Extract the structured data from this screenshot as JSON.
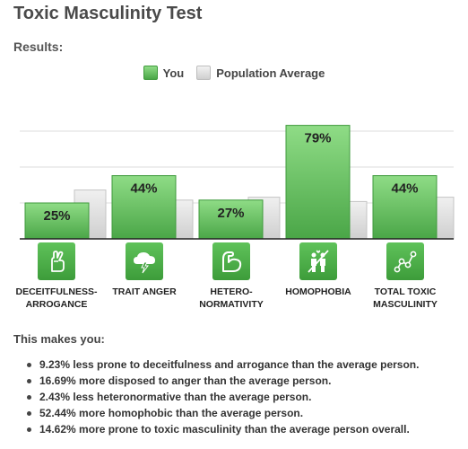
{
  "page": {
    "title": "Toxic Masculinity Test",
    "subtitle": "Results:",
    "makes_you_label": "This makes you:"
  },
  "legend": {
    "you": "You",
    "average": "Population Average"
  },
  "colors": {
    "you_bar_top": "#8fdc86",
    "you_bar_bottom": "#4aa647",
    "avg_bar_top": "#f0f0f0",
    "avg_bar_bottom": "#cfcfcf",
    "icon_green": "#4aa647"
  },
  "chart_data": {
    "type": "bar",
    "title": "",
    "ylim": [
      0,
      100
    ],
    "grid": true,
    "legend_position": "top-center",
    "categories": [
      "DECEITFULNESS-ARROGANCE",
      "TRAIT ANGER",
      "HETERO-NORMATIVITY",
      "HOMOPHOBIA",
      "TOTAL TOXIC MASCULINITY"
    ],
    "series": [
      {
        "name": "You",
        "values": [
          25,
          44,
          27,
          79,
          44
        ],
        "labels": [
          "25%",
          "44%",
          "27%",
          "79%",
          "44%"
        ]
      },
      {
        "name": "Population Average",
        "values": [
          34,
          27,
          29,
          26,
          29
        ]
      }
    ]
  },
  "categories": [
    {
      "line1": "DECEITFULNESS-",
      "line2": "ARROGANCE",
      "icon": "crossed-fingers-icon"
    },
    {
      "line1": "TRAIT ANGER",
      "line2": "",
      "icon": "storm-cloud-icon"
    },
    {
      "line1": "HETERO-",
      "line2": "NORMATIVITY",
      "icon": "flexed-arm-icon"
    },
    {
      "line1": "HOMOPHOBIA",
      "line2": "",
      "icon": "couple-icon"
    },
    {
      "line1": "TOTAL TOXIC",
      "line2": "MASCULINITY",
      "icon": "connected-nodes-icon"
    }
  ],
  "results": [
    "9.23% less prone to deceitfulness and arrogance than the average person.",
    "16.69% more disposed to anger than the average person.",
    "2.43% less heteronormative than the average person.",
    "52.44% more homophobic than the average person.",
    "14.62% more prone to toxic masculinity than the average person overall."
  ]
}
